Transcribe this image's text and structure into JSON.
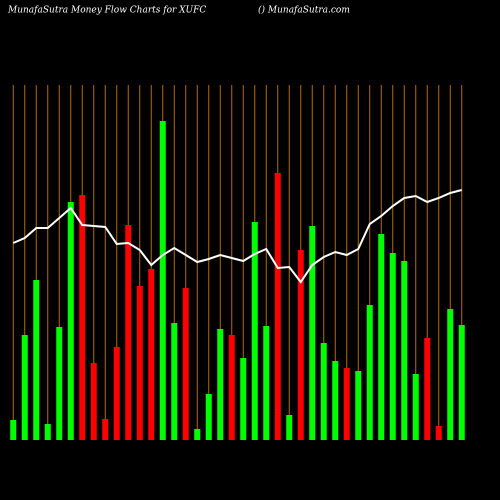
{
  "chart_data": {
    "type": "bar",
    "title": "MunafaSutra  Money Flow  Charts for XUFC",
    "subtitle": "() MunafaSutra.com",
    "ylim": [
      0,
      340
    ],
    "values": [
      20,
      105,
      160,
      16,
      113,
      238,
      245,
      77,
      21,
      93,
      215,
      154,
      171,
      319,
      117,
      152,
      11,
      46,
      111,
      105,
      82,
      218,
      114,
      267,
      25,
      190,
      214,
      97,
      79,
      72,
      69,
      135,
      206,
      187,
      179,
      66,
      102,
      14,
      131,
      115
    ],
    "colors": [
      "#00ff00",
      "#00ff00",
      "#00ff00",
      "#00ff00",
      "#00ff00",
      "#00ff00",
      "#ff0000",
      "#ff0000",
      "#ff0000",
      "#ff0000",
      "#ff0000",
      "#ff0000",
      "#ff0000",
      "#00ff00",
      "#00ff00",
      "#ff0000",
      "#00ff00",
      "#00ff00",
      "#00ff00",
      "#ff0000",
      "#00ff00",
      "#00ff00",
      "#00ff00",
      "#ff0000",
      "#00ff00",
      "#ff0000",
      "#00ff00",
      "#00ff00",
      "#00ff00",
      "#ff0000",
      "#00ff00",
      "#00ff00",
      "#00ff00",
      "#00ff00",
      "#00ff00",
      "#00ff00",
      "#ff0000",
      "#ff0000",
      "#00ff00",
      "#00ff00"
    ],
    "line": {
      "color": "#ffffff",
      "values": [
        197,
        202,
        212,
        212,
        222,
        232,
        215,
        214,
        213,
        196,
        197,
        190,
        175,
        185,
        192,
        185,
        178,
        181,
        185,
        182,
        179,
        186,
        191,
        172,
        173,
        158,
        175,
        183,
        188,
        185,
        191,
        216,
        224,
        234,
        242,
        244,
        238,
        242,
        247,
        250
      ]
    }
  }
}
